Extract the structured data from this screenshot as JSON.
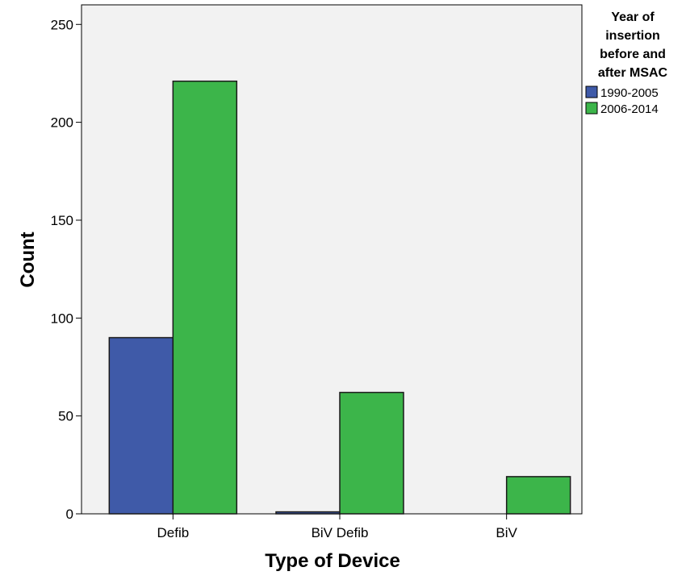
{
  "chart_data": {
    "type": "bar",
    "xlabel": "Type of Device",
    "ylabel": "Count",
    "categories": [
      "Defib",
      "BiV Defib",
      "BiV"
    ],
    "ylim": [
      0,
      260
    ],
    "yticks": [
      0,
      50,
      100,
      150,
      200,
      250
    ],
    "grid": false,
    "legend_position": "top-right",
    "legend_title": [
      "Year of",
      "insertion",
      "before and",
      "after MSAC"
    ],
    "series": [
      {
        "name": "1990-2005",
        "color": "#3f5aa8",
        "values": [
          90,
          1,
          0
        ]
      },
      {
        "name": "2006-2014",
        "color": "#3cb54a",
        "values": [
          221,
          62,
          19
        ]
      }
    ]
  }
}
